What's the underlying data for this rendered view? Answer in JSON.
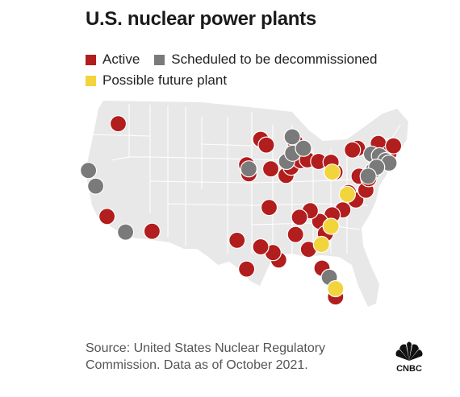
{
  "title": "U.S. nuclear power plants",
  "legend": [
    {
      "label": "Active",
      "color": "#b21d1d"
    },
    {
      "label": "Scheduled to be decommissioned",
      "color": "#7a7a7a"
    },
    {
      "label": "Possible future plant",
      "color": "#f2d43d"
    }
  ],
  "source_lines": [
    "Source: United States Nuclear Regulatory",
    "Commission. Data as of October 2021."
  ],
  "logo": {
    "icon": "cnbc-peacock-logo",
    "text": "CNBC"
  },
  "map": {
    "land_color": "#e8e8e8",
    "border_color": "#ffffff"
  },
  "chart_data": {
    "type": "scatter",
    "series": [
      {
        "name": "Active",
        "color": "#b21d1d",
        "points": [
          [
            -118.9,
            46.5
          ],
          [
            -120.9,
            35.2
          ],
          [
            -112.9,
            33.4
          ],
          [
            -95.7,
            40.4
          ],
          [
            -96.1,
            41.5
          ],
          [
            -93.6,
            44.6
          ],
          [
            -92.6,
            43.9
          ],
          [
            -91.8,
            41.0
          ],
          [
            -89.1,
            40.2
          ],
          [
            -88.2,
            41.2
          ],
          [
            -87.5,
            44.3
          ],
          [
            -86.5,
            42.0
          ],
          [
            -85.3,
            42.1
          ],
          [
            -83.3,
            41.9
          ],
          [
            -80.4,
            40.6
          ],
          [
            -81.1,
            41.8
          ],
          [
            -76.4,
            43.5
          ],
          [
            -77.3,
            43.3
          ],
          [
            -76.1,
            40.1
          ],
          [
            -79.0,
            36.0
          ],
          [
            -78.0,
            38.1
          ],
          [
            -76.7,
            37.2
          ],
          [
            -81.3,
            34.3
          ],
          [
            -80.9,
            35.4
          ],
          [
            -83.1,
            34.6
          ],
          [
            -82.1,
            33.1
          ],
          [
            -85.1,
            31.2
          ],
          [
            -87.4,
            33.0
          ],
          [
            -90.4,
            29.9
          ],
          [
            -91.4,
            30.8
          ],
          [
            -93.6,
            31.5
          ],
          [
            -96.1,
            28.8
          ],
          [
            -97.8,
            32.3
          ],
          [
            -92.1,
            36.3
          ],
          [
            -84.8,
            35.9
          ],
          [
            -86.7,
            35.1
          ],
          [
            -80.3,
            25.4
          ],
          [
            -82.7,
            28.9
          ],
          [
            -72.7,
            44.1
          ],
          [
            -70.8,
            42.9
          ],
          [
            -74.9,
            38.4
          ],
          [
            -74.4,
            39.8
          ],
          [
            -70.0,
            43.8
          ]
        ]
      },
      {
        "name": "Scheduled to be decommissioned",
        "color": "#7a7a7a",
        "points": [
          [
            -124.2,
            40.8
          ],
          [
            -122.9,
            38.9
          ],
          [
            -117.6,
            33.3
          ],
          [
            -95.7,
            41.0
          ],
          [
            -88.0,
            44.9
          ],
          [
            -89.0,
            41.9
          ],
          [
            -87.9,
            42.9
          ],
          [
            -86.0,
            43.5
          ],
          [
            -73.9,
            42.8
          ],
          [
            -72.5,
            42.6
          ],
          [
            -71.4,
            42.0
          ],
          [
            -70.8,
            41.7
          ],
          [
            -73.6,
            40.8
          ],
          [
            -73.0,
            41.2
          ],
          [
            -74.5,
            40.1
          ],
          [
            -81.4,
            27.8
          ]
        ]
      },
      {
        "name": "Possible future plant",
        "color": "#f2d43d",
        "points": [
          [
            -80.9,
            40.6
          ],
          [
            -78.2,
            37.9
          ],
          [
            -81.1,
            34.0
          ],
          [
            -82.8,
            31.8
          ],
          [
            -80.3,
            26.4
          ]
        ]
      }
    ]
  }
}
